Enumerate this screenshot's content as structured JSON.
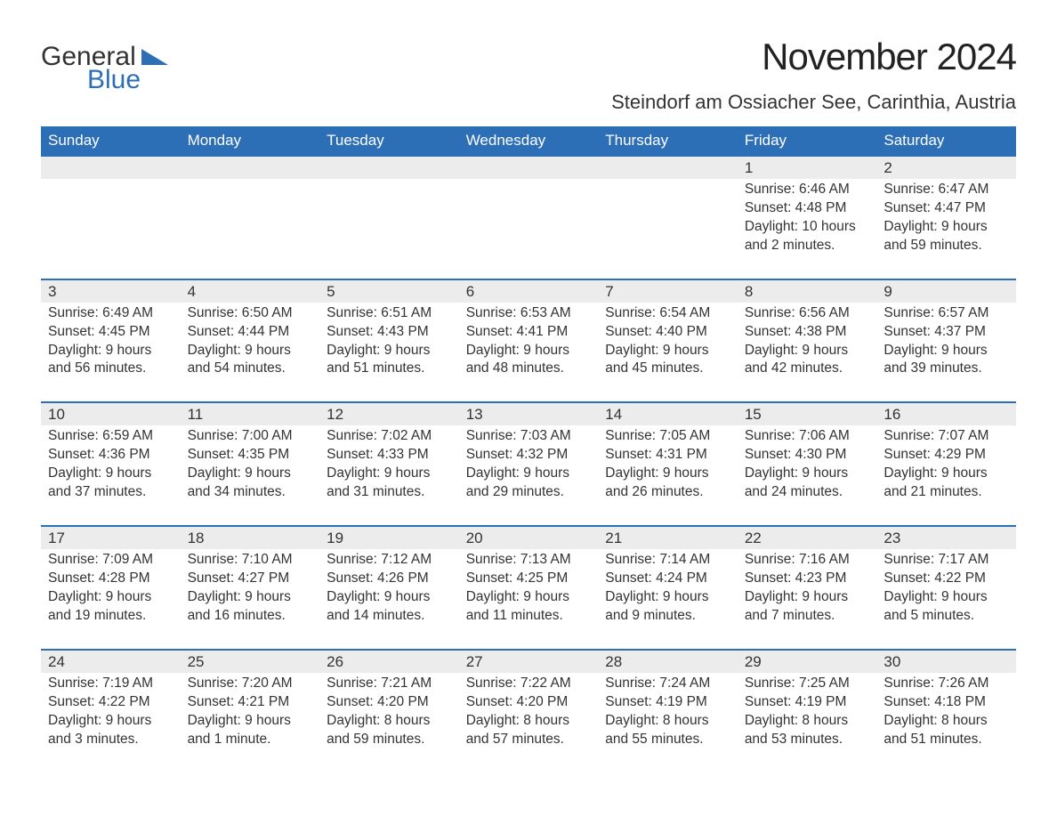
{
  "brand": {
    "word1": "General",
    "word2": "Blue",
    "triangle_color": "#2d6fb7"
  },
  "title": "November 2024",
  "location": "Steindorf am Ossiacher See, Carinthia, Austria",
  "colors": {
    "header_bg": "#2d6fb7",
    "header_text": "#ffffff",
    "daynum_bg": "#ececec",
    "row_border": "#2d6fb7",
    "body_text": "#333333",
    "page_bg": "#ffffff"
  },
  "typography": {
    "title_fontsize": 42,
    "location_fontsize": 22,
    "header_fontsize": 17,
    "daynum_fontsize": 17,
    "detail_fontsize": 15.5,
    "font_family": "Arial"
  },
  "day_headers": [
    "Sunday",
    "Monday",
    "Tuesday",
    "Wednesday",
    "Thursday",
    "Friday",
    "Saturday"
  ],
  "weeks": [
    [
      null,
      null,
      null,
      null,
      null,
      {
        "n": "1",
        "sr": "Sunrise: 6:46 AM",
        "ss": "Sunset: 4:48 PM",
        "d1": "Daylight: 10 hours",
        "d2": "and 2 minutes."
      },
      {
        "n": "2",
        "sr": "Sunrise: 6:47 AM",
        "ss": "Sunset: 4:47 PM",
        "d1": "Daylight: 9 hours",
        "d2": "and 59 minutes."
      }
    ],
    [
      {
        "n": "3",
        "sr": "Sunrise: 6:49 AM",
        "ss": "Sunset: 4:45 PM",
        "d1": "Daylight: 9 hours",
        "d2": "and 56 minutes."
      },
      {
        "n": "4",
        "sr": "Sunrise: 6:50 AM",
        "ss": "Sunset: 4:44 PM",
        "d1": "Daylight: 9 hours",
        "d2": "and 54 minutes."
      },
      {
        "n": "5",
        "sr": "Sunrise: 6:51 AM",
        "ss": "Sunset: 4:43 PM",
        "d1": "Daylight: 9 hours",
        "d2": "and 51 minutes."
      },
      {
        "n": "6",
        "sr": "Sunrise: 6:53 AM",
        "ss": "Sunset: 4:41 PM",
        "d1": "Daylight: 9 hours",
        "d2": "and 48 minutes."
      },
      {
        "n": "7",
        "sr": "Sunrise: 6:54 AM",
        "ss": "Sunset: 4:40 PM",
        "d1": "Daylight: 9 hours",
        "d2": "and 45 minutes."
      },
      {
        "n": "8",
        "sr": "Sunrise: 6:56 AM",
        "ss": "Sunset: 4:38 PM",
        "d1": "Daylight: 9 hours",
        "d2": "and 42 minutes."
      },
      {
        "n": "9",
        "sr": "Sunrise: 6:57 AM",
        "ss": "Sunset: 4:37 PM",
        "d1": "Daylight: 9 hours",
        "d2": "and 39 minutes."
      }
    ],
    [
      {
        "n": "10",
        "sr": "Sunrise: 6:59 AM",
        "ss": "Sunset: 4:36 PM",
        "d1": "Daylight: 9 hours",
        "d2": "and 37 minutes."
      },
      {
        "n": "11",
        "sr": "Sunrise: 7:00 AM",
        "ss": "Sunset: 4:35 PM",
        "d1": "Daylight: 9 hours",
        "d2": "and 34 minutes."
      },
      {
        "n": "12",
        "sr": "Sunrise: 7:02 AM",
        "ss": "Sunset: 4:33 PM",
        "d1": "Daylight: 9 hours",
        "d2": "and 31 minutes."
      },
      {
        "n": "13",
        "sr": "Sunrise: 7:03 AM",
        "ss": "Sunset: 4:32 PM",
        "d1": "Daylight: 9 hours",
        "d2": "and 29 minutes."
      },
      {
        "n": "14",
        "sr": "Sunrise: 7:05 AM",
        "ss": "Sunset: 4:31 PM",
        "d1": "Daylight: 9 hours",
        "d2": "and 26 minutes."
      },
      {
        "n": "15",
        "sr": "Sunrise: 7:06 AM",
        "ss": "Sunset: 4:30 PM",
        "d1": "Daylight: 9 hours",
        "d2": "and 24 minutes."
      },
      {
        "n": "16",
        "sr": "Sunrise: 7:07 AM",
        "ss": "Sunset: 4:29 PM",
        "d1": "Daylight: 9 hours",
        "d2": "and 21 minutes."
      }
    ],
    [
      {
        "n": "17",
        "sr": "Sunrise: 7:09 AM",
        "ss": "Sunset: 4:28 PM",
        "d1": "Daylight: 9 hours",
        "d2": "and 19 minutes."
      },
      {
        "n": "18",
        "sr": "Sunrise: 7:10 AM",
        "ss": "Sunset: 4:27 PM",
        "d1": "Daylight: 9 hours",
        "d2": "and 16 minutes."
      },
      {
        "n": "19",
        "sr": "Sunrise: 7:12 AM",
        "ss": "Sunset: 4:26 PM",
        "d1": "Daylight: 9 hours",
        "d2": "and 14 minutes."
      },
      {
        "n": "20",
        "sr": "Sunrise: 7:13 AM",
        "ss": "Sunset: 4:25 PM",
        "d1": "Daylight: 9 hours",
        "d2": "and 11 minutes."
      },
      {
        "n": "21",
        "sr": "Sunrise: 7:14 AM",
        "ss": "Sunset: 4:24 PM",
        "d1": "Daylight: 9 hours",
        "d2": "and 9 minutes."
      },
      {
        "n": "22",
        "sr": "Sunrise: 7:16 AM",
        "ss": "Sunset: 4:23 PM",
        "d1": "Daylight: 9 hours",
        "d2": "and 7 minutes."
      },
      {
        "n": "23",
        "sr": "Sunrise: 7:17 AM",
        "ss": "Sunset: 4:22 PM",
        "d1": "Daylight: 9 hours",
        "d2": "and 5 minutes."
      }
    ],
    [
      {
        "n": "24",
        "sr": "Sunrise: 7:19 AM",
        "ss": "Sunset: 4:22 PM",
        "d1": "Daylight: 9 hours",
        "d2": "and 3 minutes."
      },
      {
        "n": "25",
        "sr": "Sunrise: 7:20 AM",
        "ss": "Sunset: 4:21 PM",
        "d1": "Daylight: 9 hours",
        "d2": "and 1 minute."
      },
      {
        "n": "26",
        "sr": "Sunrise: 7:21 AM",
        "ss": "Sunset: 4:20 PM",
        "d1": "Daylight: 8 hours",
        "d2": "and 59 minutes."
      },
      {
        "n": "27",
        "sr": "Sunrise: 7:22 AM",
        "ss": "Sunset: 4:20 PM",
        "d1": "Daylight: 8 hours",
        "d2": "and 57 minutes."
      },
      {
        "n": "28",
        "sr": "Sunrise: 7:24 AM",
        "ss": "Sunset: 4:19 PM",
        "d1": "Daylight: 8 hours",
        "d2": "and 55 minutes."
      },
      {
        "n": "29",
        "sr": "Sunrise: 7:25 AM",
        "ss": "Sunset: 4:19 PM",
        "d1": "Daylight: 8 hours",
        "d2": "and 53 minutes."
      },
      {
        "n": "30",
        "sr": "Sunrise: 7:26 AM",
        "ss": "Sunset: 4:18 PM",
        "d1": "Daylight: 8 hours",
        "d2": "and 51 minutes."
      }
    ]
  ]
}
